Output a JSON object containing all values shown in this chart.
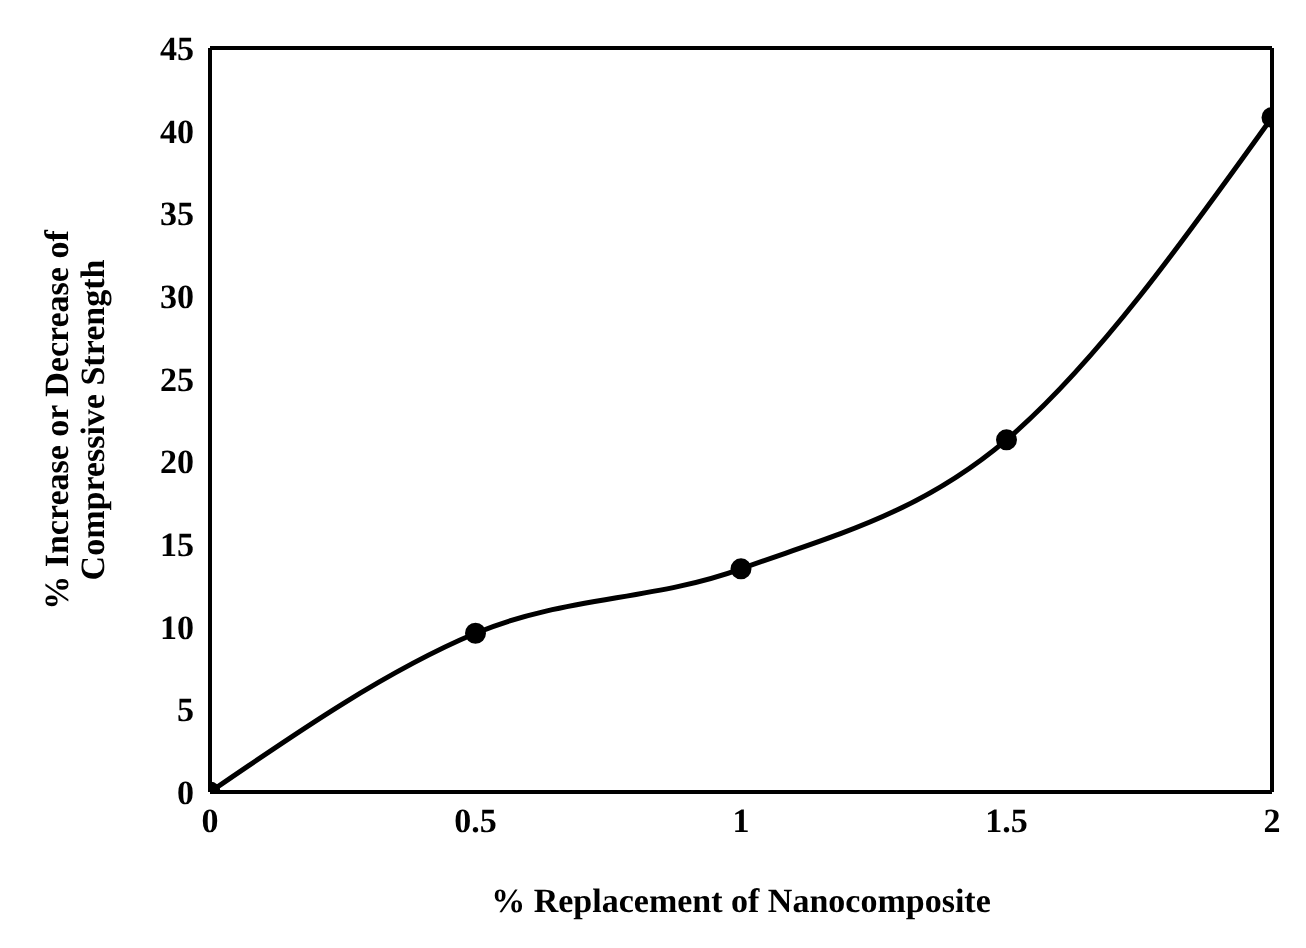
{
  "chart_data": {
    "type": "line",
    "xlabel": "% Replacement of Nanocomposite",
    "ylabel": "% Increase or Decrease of\nCompressive Strength",
    "x": [
      0,
      0.5,
      1,
      1.5,
      2
    ],
    "series": [
      {
        "color": "#000000",
        "values": [
          0,
          9.6,
          13.5,
          21.3,
          40.8
        ]
      }
    ],
    "xlim": [
      0,
      2
    ],
    "xticks": [
      0,
      0.5,
      1,
      1.5,
      2
    ],
    "ylim": [
      0,
      45
    ],
    "yticks": [
      0,
      5,
      10,
      15,
      20,
      25,
      30,
      35,
      40,
      45
    ],
    "grid": false,
    "marker": "circle",
    "line_style": "solid"
  }
}
